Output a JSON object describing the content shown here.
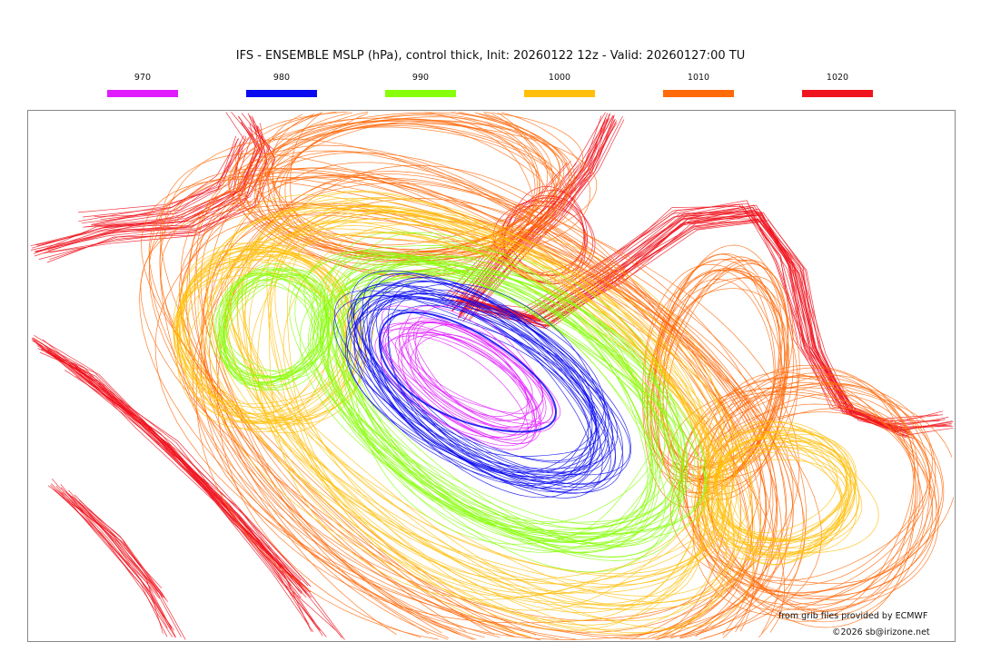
{
  "title": "IFS - ENSEMBLE MSLP (hPa), control thick, Init: 20260122 12z - Valid: 20260127:00 TU",
  "legend": [
    {
      "label": "970",
      "color": "#e01cff"
    },
    {
      "label": "980",
      "color": "#0a0af0"
    },
    {
      "label": "990",
      "color": "#88ff0a"
    },
    {
      "label": "1000",
      "color": "#ffbf0a"
    },
    {
      "label": "1010",
      "color": "#ff6a0a"
    },
    {
      "label": "1020",
      "color": "#f0141e"
    }
  ],
  "credits": {
    "source": "from grib files provided by ECMWF",
    "copyright": "©2026 sb@irizone.net"
  }
}
